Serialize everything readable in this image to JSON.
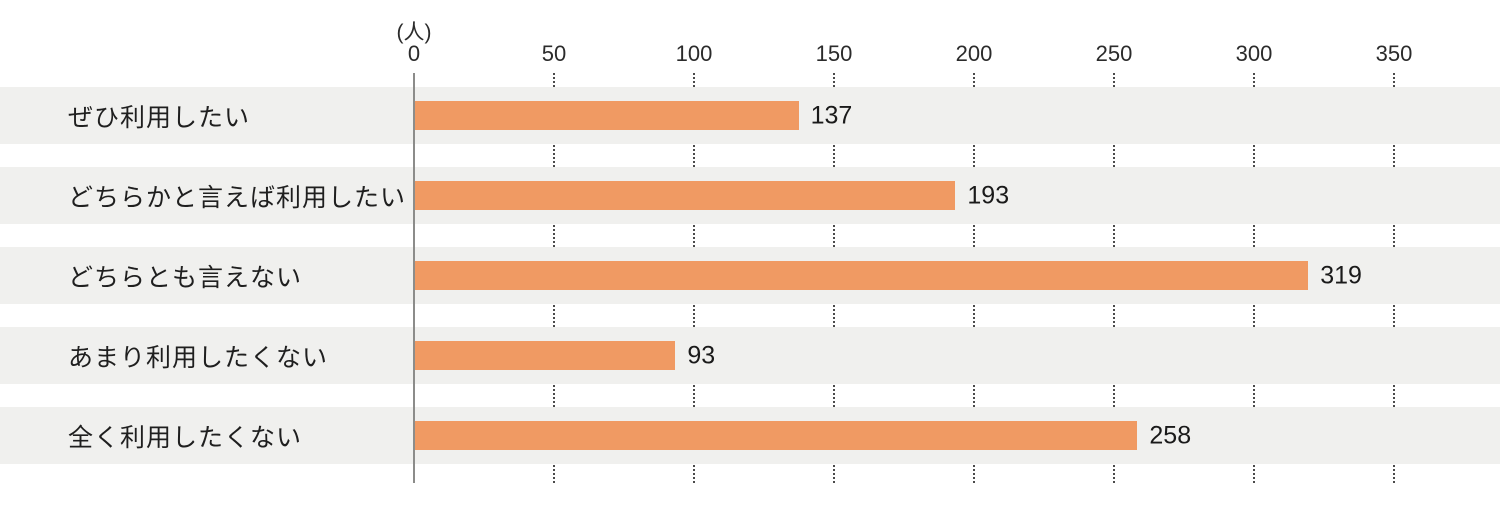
{
  "chart_data": {
    "type": "bar",
    "orientation": "horizontal",
    "title": "",
    "unit_label": "(人)",
    "categories": [
      "ぜひ利用したい",
      "どちらかと言えば利用したい",
      "どちらとも言えない",
      "あまり利用したくない",
      "全く利用したくない"
    ],
    "values": [
      137,
      193,
      319,
      93,
      258
    ],
    "x_ticks": [
      0,
      50,
      100,
      150,
      200,
      250,
      300,
      350
    ],
    "xlim": [
      0,
      387
    ],
    "grid": "dotted-vertical-in-row-gaps",
    "value_labels_shown": true,
    "legend": null
  },
  "colors": {
    "bar": "#f09a63",
    "row_band": "#f0f0ee",
    "axis_line": "#8c8c8a",
    "gridline": "#4a4a4a",
    "text": "#1f1f1f",
    "background": "#ffffff"
  }
}
